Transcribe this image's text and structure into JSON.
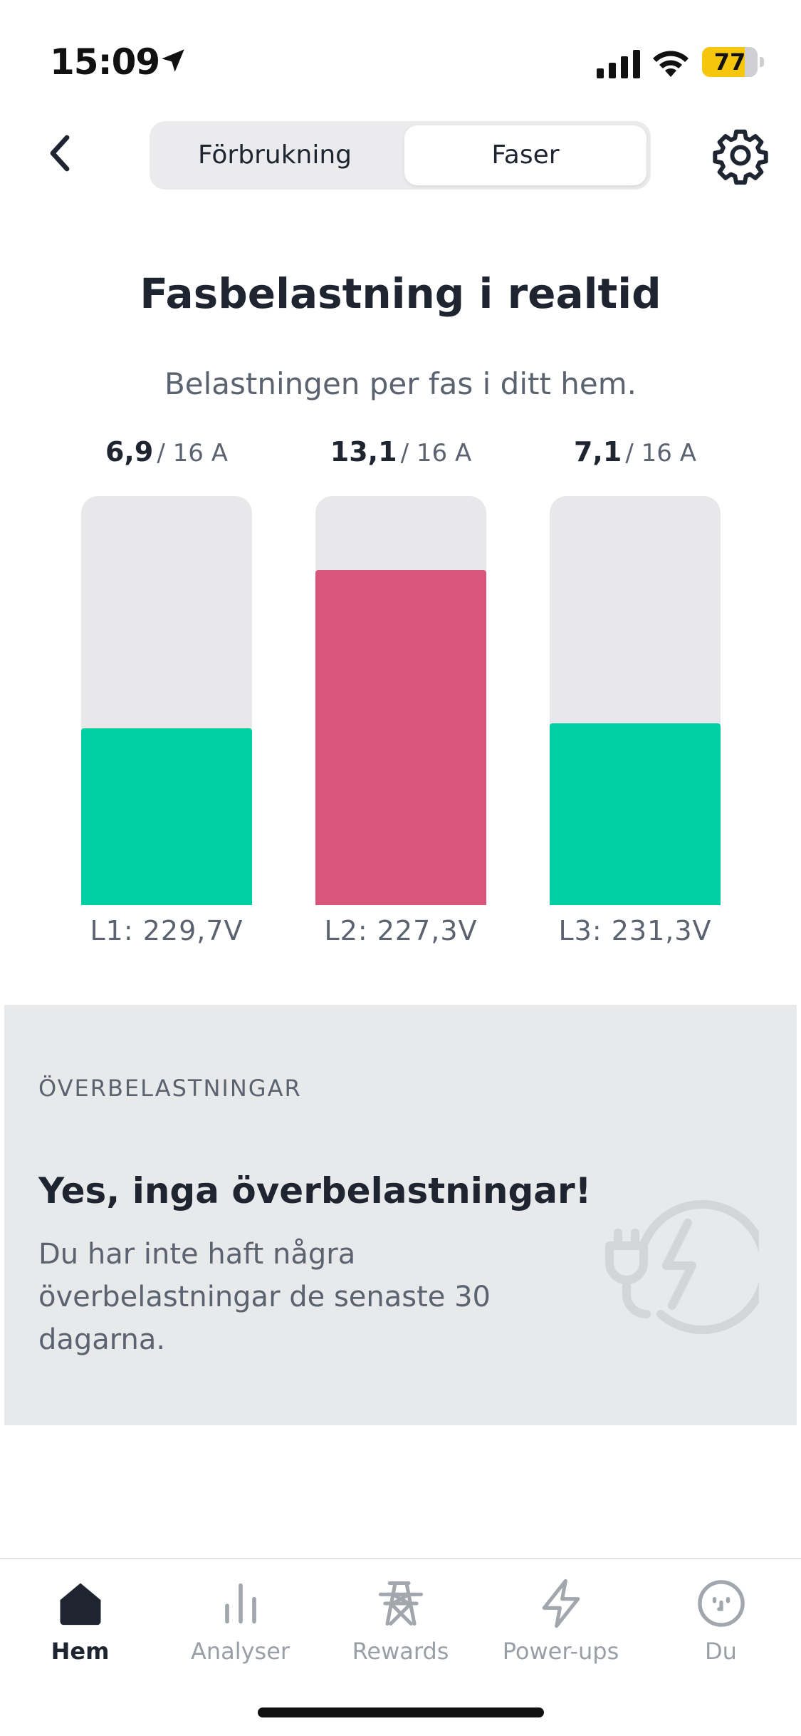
{
  "status_bar": {
    "time": "15:09",
    "battery": "77",
    "battery_percent": 77
  },
  "header": {
    "tabs": [
      {
        "label": "Förbrukning",
        "selected": false
      },
      {
        "label": "Faser",
        "selected": true
      }
    ]
  },
  "title": "Fasbelastning i realtid",
  "subtitle": "Belastningen per fas i ditt hem.",
  "phases": [
    {
      "current": "6,9",
      "max": "/ 16 A",
      "value": 6.9,
      "capacity": 16,
      "voltage": "L1: 229,7V",
      "color": "#00cfa3"
    },
    {
      "current": "13,1",
      "max": "/ 16 A",
      "value": 13.1,
      "capacity": 16,
      "voltage": "L2: 227,3V",
      "color": "#d9557a"
    },
    {
      "current": "7,1",
      "max": "/ 16 A",
      "value": 7.1,
      "capacity": 16,
      "voltage": "L3: 231,3V",
      "color": "#00cfa3"
    }
  ],
  "overload": {
    "heading": "ÖVERBELASTNINGAR",
    "title": "Yes, inga överbelastningar!",
    "text": "Du har inte haft några överbelastningar de senaste 30 dagarna."
  },
  "nav": {
    "items": [
      {
        "label": "Hem",
        "icon": "home-icon",
        "active": true
      },
      {
        "label": "Analyser",
        "icon": "bar-chart-icon",
        "active": false
      },
      {
        "label": "Rewards",
        "icon": "power-tower-icon",
        "active": false
      },
      {
        "label": "Power-ups",
        "icon": "lightning-icon",
        "active": false
      },
      {
        "label": "Du",
        "icon": "face-icon",
        "active": false
      }
    ]
  }
}
